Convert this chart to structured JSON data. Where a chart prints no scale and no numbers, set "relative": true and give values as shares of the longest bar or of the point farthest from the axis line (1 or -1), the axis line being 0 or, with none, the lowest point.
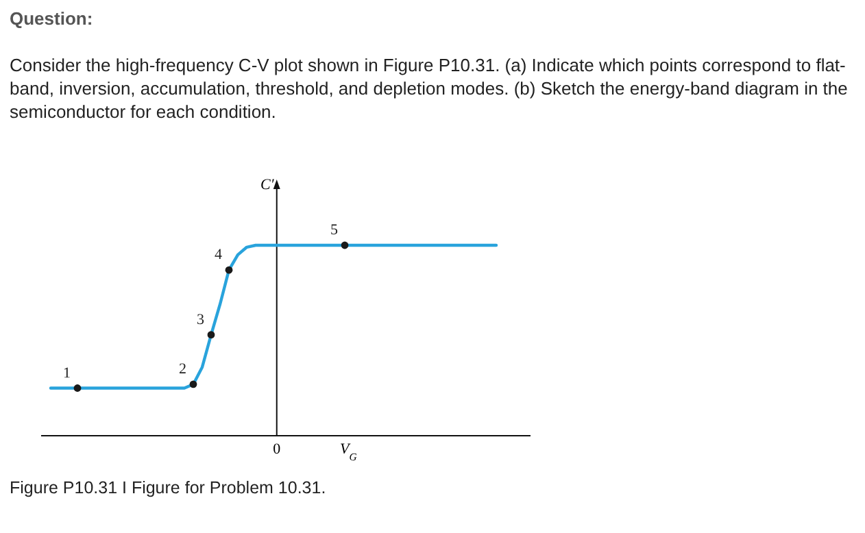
{
  "chart_data": {
    "type": "line",
    "title": "Question:",
    "subtitle": "Consider the high-frequency C-V plot shown in Figure P10.31. (a) Indicate which points correspond to flat-band, inversion, accumulation, threshold, and depletion modes. (b) Sketch the energy-band diagram in the semiconductor for each condition.",
    "xlabel": "V$_{G}$",
    "ylabel": "C′",
    "annotations": [
      "1",
      "2",
      "3",
      "4",
      "5",
      "0",
      "Figure P10.31 I Figure for Problem 10.31."
    ],
    "relative": true,
    "categories": [
      null,
      null,
      null,
      null,
      null,
      null,
      null,
      null,
      null,
      null,
      null,
      null,
      null,
      null,
      null,
      null,
      null,
      null,
      null,
      null,
      null,
      null,
      null,
      null,
      null,
      null,
      null,
      null,
      null,
      null,
      null,
      null,
      null,
      null,
      null,
      null,
      null,
      null,
      null,
      null,
      null,
      null,
      null,
      null,
      null,
      null,
      null,
      null,
      null,
      null,
      null
    ],
    "series": [
      {
        "color": "#29a3dc",
        "marker": "none",
        "values": [
          0.25,
          0.25,
          0.25,
          0.25,
          0.25,
          0.25,
          0.25,
          0.25,
          0.25,
          0.25,
          0.25,
          0.25,
          0.25,
          0.25,
          0.25,
          0.25,
          0.27,
          0.36,
          0.53,
          0.69,
          0.87,
          0.95,
          0.99,
          1,
          1,
          1,
          1,
          1,
          1,
          1,
          1,
          1,
          1,
          1,
          1,
          1,
          1,
          1,
          1,
          1,
          1,
          1,
          1,
          1,
          1,
          1,
          1,
          1,
          1,
          1,
          1
        ]
      }
    ]
  }
}
